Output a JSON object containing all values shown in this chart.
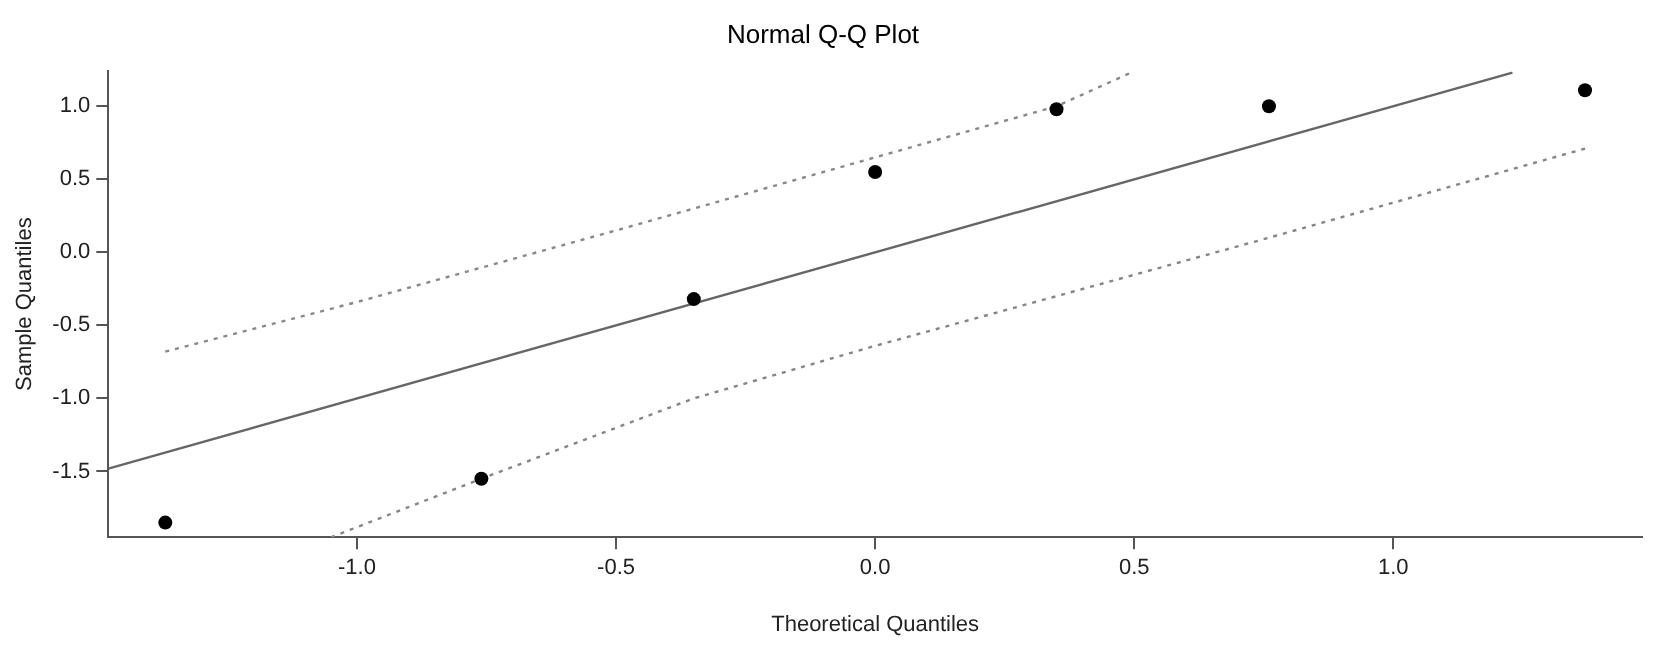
{
  "chart_data": {
    "type": "scatter",
    "title": "Normal Q-Q Plot",
    "xlabel": "Theoretical Quantiles",
    "ylabel": "Sample Quantiles",
    "xlim": [
      -1.48,
      1.48
    ],
    "ylim": [
      -1.95,
      1.24
    ],
    "xticks": [
      {
        "value": -1,
        "label": "-1.0"
      },
      -0.5,
      {
        "value": 0,
        "label": "0.0"
      },
      0.5,
      {
        "value": 1,
        "label": "1.0"
      }
    ],
    "yticks": [
      -1.5,
      {
        "value": -1,
        "label": "-1.0"
      },
      -0.5,
      {
        "value": 0,
        "label": "0.0"
      },
      0.5,
      {
        "value": 1,
        "label": "1.0"
      }
    ],
    "grid": false,
    "legend": false,
    "series": [
      {
        "type": "line",
        "color": "#666666",
        "line_style": "solid",
        "marker": "none",
        "x": [
          -1.48,
          1.23
        ],
        "values": [
          -1.48,
          1.23
        ]
      },
      {
        "type": "line",
        "color": "#888888",
        "line_style": "dotted",
        "marker": "none",
        "x": [
          -1.37,
          -1.0,
          -0.5,
          0.0,
          0.35,
          0.5
        ],
        "values": [
          -0.68,
          -0.34,
          0.15,
          0.65,
          1.0,
          1.24
        ]
      },
      {
        "type": "line",
        "color": "#858585",
        "line_style": "dotted",
        "marker": "none",
        "x": [
          -1.05,
          -0.76,
          -0.35,
          0.0,
          0.35,
          0.76,
          1.37
        ],
        "values": [
          -1.95,
          -1.55,
          -1.0,
          -0.64,
          -0.3,
          0.1,
          0.71
        ]
      },
      {
        "type": "scatter",
        "color": "#000000",
        "marker": "circle",
        "x": [
          -1.37,
          -0.76,
          -0.35,
          0.0,
          0.35,
          0.76,
          1.37
        ],
        "values": [
          -1.85,
          -1.55,
          -0.32,
          0.55,
          0.98,
          1.0,
          1.11
        ]
      }
    ]
  }
}
